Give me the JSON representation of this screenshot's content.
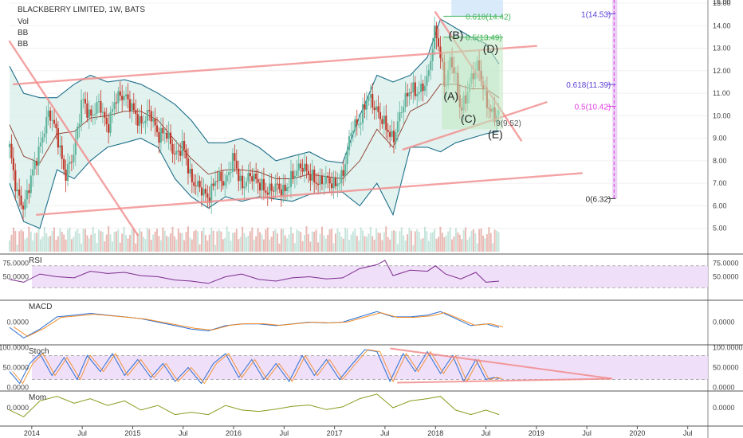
{
  "header": {
    "symbol": "BLACKBERRY LIMITED, 1W, BATS",
    "indicators": [
      "Vol",
      "BB",
      "BB"
    ]
  },
  "fib_green": [
    {
      "label": "0.618(14.42)",
      "price": 14.42
    },
    {
      "label": "0.5(13.49)",
      "price": 13.49
    }
  ],
  "fib_purple": [
    {
      "label": "1(14.53)",
      "price": 14.53
    },
    {
      "label": "0.618(11.39)",
      "price": 11.39
    },
    {
      "label": "0.5(10.42)",
      "price": 10.42
    },
    {
      "label": "0(6.32)",
      "price": 6.32
    }
  ],
  "wave_labels": [
    {
      "label": "(B)",
      "date": 2018.13,
      "price": 13.4
    },
    {
      "label": "(D)",
      "date": 2018.47,
      "price": 12.8
    },
    {
      "label": "(A)",
      "date": 2018.08,
      "price": 10.7
    },
    {
      "label": "(C)",
      "date": 2018.25,
      "price": 9.7
    },
    {
      "label": "(E)",
      "date": 2018.52,
      "price": 9.0
    }
  ],
  "low_note": {
    "label": "9(9.52)",
    "date": 2018.6,
    "price": 9.55
  },
  "panels": {
    "rsi": {
      "title": "RSI",
      "ticks": [
        "75.0000",
        "50.0000"
      ]
    },
    "macd": {
      "title": "MACD",
      "ticks": [
        "0.0000"
      ]
    },
    "stoch": {
      "title": "Stoch",
      "ticks": [
        "100.0000",
        "50.0000",
        "0.0000"
      ]
    },
    "mom": {
      "title": "Mom",
      "ticks": [
        "0.0000"
      ]
    }
  },
  "colors": {
    "up": "#5fb49c",
    "down": "#c0392b",
    "band": "#1d6f8a",
    "band_fill": "#d8eeea",
    "trend": "#f28b8b",
    "fib_green": "#43b55b",
    "fib_purple": "#5b3fd4",
    "fib_pink": "#e040e0",
    "osc_fill": "#eedcf7"
  },
  "chart_data": {
    "type": "candlestick",
    "title": "BLACKBERRY LIMITED, 1W, BATS",
    "price_ticks": [
      15,
      14,
      13,
      12,
      11,
      10,
      9,
      8,
      7,
      6,
      5
    ],
    "price_tick_labels": [
      "15.00",
      "14.00",
      "13.00",
      "12.00",
      "11.00",
      "10.00",
      "9.00",
      "8.00",
      "7.00",
      "6.00",
      "5.00"
    ],
    "ylim": [
      4.6,
      15.0
    ],
    "x_ticks": [
      {
        "label": "2014",
        "date": 2014.0
      },
      {
        "label": "Jul",
        "date": 2014.5
      },
      {
        "label": "2015",
        "date": 2015.0
      },
      {
        "label": "Jul",
        "date": 2015.5
      },
      {
        "label": "2016",
        "date": 2016.0
      },
      {
        "label": "Jul",
        "date": 2016.5
      },
      {
        "label": "2017",
        "date": 2017.0
      },
      {
        "label": "Jul",
        "date": 2017.5
      },
      {
        "label": "2018",
        "date": 2018.0
      },
      {
        "label": "Jul",
        "date": 2018.5
      },
      {
        "label": "2019",
        "date": 2019.0
      },
      {
        "label": "Jul",
        "date": 2019.5
      },
      {
        "label": "2020",
        "date": 2020.0
      },
      {
        "label": "Jul",
        "date": 2020.5
      }
    ],
    "xlim": [
      2013.78,
      2020.7
    ],
    "close_path": [
      [
        2013.78,
        8.6
      ],
      [
        2013.85,
        6.6
      ],
      [
        2013.92,
        5.9
      ],
      [
        2014.0,
        7.4
      ],
      [
        2014.08,
        8.6
      ],
      [
        2014.17,
        10.2
      ],
      [
        2014.25,
        9.2
      ],
      [
        2014.33,
        7.3
      ],
      [
        2014.42,
        8.4
      ],
      [
        2014.5,
        10.8
      ],
      [
        2014.58,
        9.9
      ],
      [
        2014.67,
        10.6
      ],
      [
        2014.75,
        9.4
      ],
      [
        2014.83,
        10.8
      ],
      [
        2014.92,
        10.9
      ],
      [
        2015.0,
        10.3
      ],
      [
        2015.08,
        9.6
      ],
      [
        2015.17,
        10.2
      ],
      [
        2015.25,
        9.1
      ],
      [
        2015.33,
        9.3
      ],
      [
        2015.42,
        8.2
      ],
      [
        2015.5,
        8.7
      ],
      [
        2015.58,
        7.1
      ],
      [
        2015.67,
        6.8
      ],
      [
        2015.75,
        6.3
      ],
      [
        2015.83,
        7.3
      ],
      [
        2015.92,
        7.0
      ],
      [
        2016.0,
        8.2
      ],
      [
        2016.08,
        6.8
      ],
      [
        2016.17,
        7.4
      ],
      [
        2016.25,
        7.0
      ],
      [
        2016.33,
        6.6
      ],
      [
        2016.42,
        6.9
      ],
      [
        2016.5,
        6.6
      ],
      [
        2016.58,
        7.3
      ],
      [
        2016.67,
        7.8
      ],
      [
        2016.75,
        7.4
      ],
      [
        2016.83,
        7.0
      ],
      [
        2016.92,
        7.2
      ],
      [
        2017.0,
        6.9
      ],
      [
        2017.08,
        7.3
      ],
      [
        2017.17,
        9.5
      ],
      [
        2017.25,
        9.7
      ],
      [
        2017.33,
        10.9
      ],
      [
        2017.42,
        10.2
      ],
      [
        2017.5,
        9.6
      ],
      [
        2017.58,
        8.9
      ],
      [
        2017.67,
        10.4
      ],
      [
        2017.75,
        11.2
      ],
      [
        2017.83,
        11.0
      ],
      [
        2017.92,
        11.6
      ],
      [
        2018.0,
        13.9
      ],
      [
        2018.05,
        12.6
      ],
      [
        2018.1,
        11.2
      ],
      [
        2018.15,
        12.6
      ],
      [
        2018.2,
        11.7
      ],
      [
        2018.25,
        10.2
      ],
      [
        2018.3,
        10.8
      ],
      [
        2018.35,
        11.6
      ],
      [
        2018.42,
        12.3
      ],
      [
        2018.47,
        11.3
      ],
      [
        2018.52,
        10.4
      ],
      [
        2018.58,
        10.0
      ],
      [
        2018.63,
        10.1
      ]
    ],
    "bb_upper": [
      [
        2013.78,
        12.2
      ],
      [
        2013.92,
        11.0
      ],
      [
        2014.08,
        10.8
      ],
      [
        2014.25,
        10.8
      ],
      [
        2014.42,
        11.4
      ],
      [
        2014.58,
        11.8
      ],
      [
        2014.75,
        11.5
      ],
      [
        2014.92,
        11.6
      ],
      [
        2015.08,
        11.4
      ],
      [
        2015.25,
        11.0
      ],
      [
        2015.42,
        10.5
      ],
      [
        2015.58,
        9.8
      ],
      [
        2015.75,
        8.8
      ],
      [
        2015.92,
        8.8
      ],
      [
        2016.08,
        9.0
      ],
      [
        2016.25,
        8.6
      ],
      [
        2016.42,
        8.0
      ],
      [
        2016.58,
        8.2
      ],
      [
        2016.75,
        8.4
      ],
      [
        2016.92,
        8.0
      ],
      [
        2017.08,
        7.9
      ],
      [
        2017.25,
        10.0
      ],
      [
        2017.42,
        11.8
      ],
      [
        2017.58,
        11.5
      ],
      [
        2017.75,
        11.8
      ],
      [
        2017.92,
        12.6
      ],
      [
        2018.05,
        14.3
      ],
      [
        2018.2,
        13.9
      ],
      [
        2018.35,
        13.5
      ],
      [
        2018.5,
        13.2
      ],
      [
        2018.63,
        12.3
      ]
    ],
    "bb_lower": [
      [
        2013.78,
        7.0
      ],
      [
        2013.92,
        5.3
      ],
      [
        2014.08,
        5.0
      ],
      [
        2014.25,
        7.6
      ],
      [
        2014.42,
        7.2
      ],
      [
        2014.58,
        8.0
      ],
      [
        2014.75,
        8.6
      ],
      [
        2014.92,
        8.8
      ],
      [
        2015.08,
        9.0
      ],
      [
        2015.25,
        8.6
      ],
      [
        2015.42,
        7.2
      ],
      [
        2015.58,
        6.4
      ],
      [
        2015.75,
        5.9
      ],
      [
        2015.92,
        6.4
      ],
      [
        2016.08,
        6.2
      ],
      [
        2016.25,
        6.4
      ],
      [
        2016.42,
        6.3
      ],
      [
        2016.58,
        6.2
      ],
      [
        2016.75,
        6.5
      ],
      [
        2016.92,
        6.6
      ],
      [
        2017.08,
        6.6
      ],
      [
        2017.25,
        6.0
      ],
      [
        2017.42,
        7.0
      ],
      [
        2017.58,
        5.6
      ],
      [
        2017.75,
        8.6
      ],
      [
        2017.92,
        8.6
      ],
      [
        2018.05,
        8.4
      ],
      [
        2018.2,
        8.8
      ],
      [
        2018.35,
        9.0
      ],
      [
        2018.5,
        9.2
      ],
      [
        2018.63,
        9.3
      ]
    ],
    "bb_mid": [
      [
        2013.78,
        9.6
      ],
      [
        2013.92,
        8.2
      ],
      [
        2014.08,
        7.9
      ],
      [
        2014.25,
        9.2
      ],
      [
        2014.42,
        9.3
      ],
      [
        2014.58,
        9.9
      ],
      [
        2014.75,
        10.0
      ],
      [
        2014.92,
        10.2
      ],
      [
        2015.08,
        10.2
      ],
      [
        2015.25,
        9.8
      ],
      [
        2015.42,
        8.9
      ],
      [
        2015.58,
        8.1
      ],
      [
        2015.75,
        7.4
      ],
      [
        2015.92,
        7.6
      ],
      [
        2016.08,
        7.6
      ],
      [
        2016.25,
        7.5
      ],
      [
        2016.42,
        7.2
      ],
      [
        2016.58,
        7.2
      ],
      [
        2016.75,
        7.4
      ],
      [
        2016.92,
        7.3
      ],
      [
        2017.08,
        7.2
      ],
      [
        2017.25,
        8.0
      ],
      [
        2017.42,
        9.4
      ],
      [
        2017.58,
        8.6
      ],
      [
        2017.75,
        10.2
      ],
      [
        2017.92,
        10.6
      ],
      [
        2018.05,
        11.4
      ],
      [
        2018.2,
        11.4
      ],
      [
        2018.35,
        11.2
      ],
      [
        2018.5,
        11.2
      ],
      [
        2018.63,
        10.8
      ]
    ],
    "trendlines": [
      {
        "from": [
          2013.82,
          11.4
        ],
        "to": [
          2019.0,
          13.1
        ]
      },
      {
        "from": [
          2014.05,
          5.6
        ],
        "to": [
          2019.45,
          7.45
        ]
      },
      {
        "from": [
          2013.78,
          13.3
        ],
        "to": [
          2015.05,
          4.7
        ]
      },
      {
        "from": [
          2017.68,
          8.5
        ],
        "to": [
          2019.1,
          10.6
        ]
      },
      {
        "from": [
          2018.0,
          14.6
        ],
        "to": [
          2018.85,
          8.9
        ]
      }
    ],
    "rsi_path": [
      [
        2013.78,
        45
      ],
      [
        2013.92,
        40
      ],
      [
        2014.08,
        55
      ],
      [
        2014.25,
        50
      ],
      [
        2014.42,
        48
      ],
      [
        2014.58,
        60
      ],
      [
        2014.75,
        56
      ],
      [
        2014.92,
        58
      ],
      [
        2015.08,
        52
      ],
      [
        2015.25,
        50
      ],
      [
        2015.42,
        44
      ],
      [
        2015.58,
        42
      ],
      [
        2015.75,
        38
      ],
      [
        2015.92,
        50
      ],
      [
        2016.08,
        55
      ],
      [
        2016.25,
        45
      ],
      [
        2016.42,
        42
      ],
      [
        2016.58,
        48
      ],
      [
        2016.75,
        50
      ],
      [
        2016.92,
        46
      ],
      [
        2017.08,
        48
      ],
      [
        2017.25,
        65
      ],
      [
        2017.42,
        72
      ],
      [
        2017.5,
        80
      ],
      [
        2017.58,
        52
      ],
      [
        2017.75,
        62
      ],
      [
        2017.92,
        60
      ],
      [
        2018.0,
        70
      ],
      [
        2018.1,
        55
      ],
      [
        2018.25,
        46
      ],
      [
        2018.4,
        58
      ],
      [
        2018.5,
        40
      ],
      [
        2018.63,
        42
      ]
    ],
    "macd_path": [
      [
        2013.78,
        -0.3
      ],
      [
        2013.92,
        -0.9
      ],
      [
        2014.08,
        -0.4
      ],
      [
        2014.25,
        0.3
      ],
      [
        2014.42,
        0.4
      ],
      [
        2014.58,
        0.5
      ],
      [
        2014.75,
        0.4
      ],
      [
        2014.92,
        0.3
      ],
      [
        2015.08,
        0.2
      ],
      [
        2015.25,
        0.0
      ],
      [
        2015.42,
        -0.2
      ],
      [
        2015.58,
        -0.4
      ],
      [
        2015.75,
        -0.5
      ],
      [
        2015.92,
        -0.2
      ],
      [
        2016.08,
        -0.1
      ],
      [
        2016.25,
        -0.1
      ],
      [
        2016.42,
        -0.2
      ],
      [
        2016.58,
        -0.1
      ],
      [
        2016.75,
        0.0
      ],
      [
        2016.92,
        -0.05
      ],
      [
        2017.08,
        0.0
      ],
      [
        2017.25,
        0.3
      ],
      [
        2017.42,
        0.6
      ],
      [
        2017.58,
        0.3
      ],
      [
        2017.75,
        0.3
      ],
      [
        2017.92,
        0.4
      ],
      [
        2018.05,
        0.6
      ],
      [
        2018.2,
        0.2
      ],
      [
        2018.35,
        -0.2
      ],
      [
        2018.5,
        -0.1
      ],
      [
        2018.63,
        -0.3
      ]
    ],
    "stoch_path": [
      [
        2013.78,
        40
      ],
      [
        2013.88,
        10
      ],
      [
        2013.98,
        60
      ],
      [
        2014.08,
        85
      ],
      [
        2014.2,
        30
      ],
      [
        2014.32,
        75
      ],
      [
        2014.45,
        20
      ],
      [
        2014.55,
        80
      ],
      [
        2014.68,
        40
      ],
      [
        2014.8,
        85
      ],
      [
        2014.92,
        30
      ],
      [
        2015.05,
        70
      ],
      [
        2015.18,
        25
      ],
      [
        2015.3,
        60
      ],
      [
        2015.42,
        15
      ],
      [
        2015.55,
        50
      ],
      [
        2015.68,
        10
      ],
      [
        2015.8,
        60
      ],
      [
        2015.92,
        85
      ],
      [
        2016.05,
        25
      ],
      [
        2016.18,
        70
      ],
      [
        2016.3,
        20
      ],
      [
        2016.42,
        60
      ],
      [
        2016.55,
        15
      ],
      [
        2016.68,
        80
      ],
      [
        2016.8,
        30
      ],
      [
        2016.92,
        70
      ],
      [
        2017.05,
        20
      ],
      [
        2017.18,
        60
      ],
      [
        2017.3,
        95
      ],
      [
        2017.42,
        90
      ],
      [
        2017.55,
        15
      ],
      [
        2017.68,
        85
      ],
      [
        2017.8,
        40
      ],
      [
        2017.92,
        90
      ],
      [
        2018.05,
        35
      ],
      [
        2018.17,
        80
      ],
      [
        2018.28,
        15
      ],
      [
        2018.4,
        70
      ],
      [
        2018.5,
        20
      ],
      [
        2018.58,
        25
      ],
      [
        2018.63,
        22
      ]
    ],
    "mom_path": [
      [
        2013.78,
        -0.5
      ],
      [
        2013.92,
        -2.0
      ],
      [
        2014.08,
        1.5
      ],
      [
        2014.25,
        2.5
      ],
      [
        2014.42,
        1.0
      ],
      [
        2014.58,
        2.0
      ],
      [
        2014.75,
        0.5
      ],
      [
        2014.92,
        1.5
      ],
      [
        2015.08,
        -0.5
      ],
      [
        2015.25,
        0.5
      ],
      [
        2015.42,
        -1.5
      ],
      [
        2015.58,
        -1.0
      ],
      [
        2015.75,
        -1.5
      ],
      [
        2015.92,
        0.5
      ],
      [
        2016.08,
        -0.5
      ],
      [
        2016.25,
        -0.8
      ],
      [
        2016.42,
        -0.3
      ],
      [
        2016.58,
        0.3
      ],
      [
        2016.75,
        0.6
      ],
      [
        2016.92,
        -0.4
      ],
      [
        2017.08,
        0.2
      ],
      [
        2017.25,
        2.0
      ],
      [
        2017.42,
        3.0
      ],
      [
        2017.58,
        0.0
      ],
      [
        2017.75,
        1.5
      ],
      [
        2017.92,
        2.0
      ],
      [
        2018.05,
        2.5
      ],
      [
        2018.2,
        -0.5
      ],
      [
        2018.35,
        -1.5
      ],
      [
        2018.5,
        -0.5
      ],
      [
        2018.63,
        -1.5
      ]
    ]
  }
}
